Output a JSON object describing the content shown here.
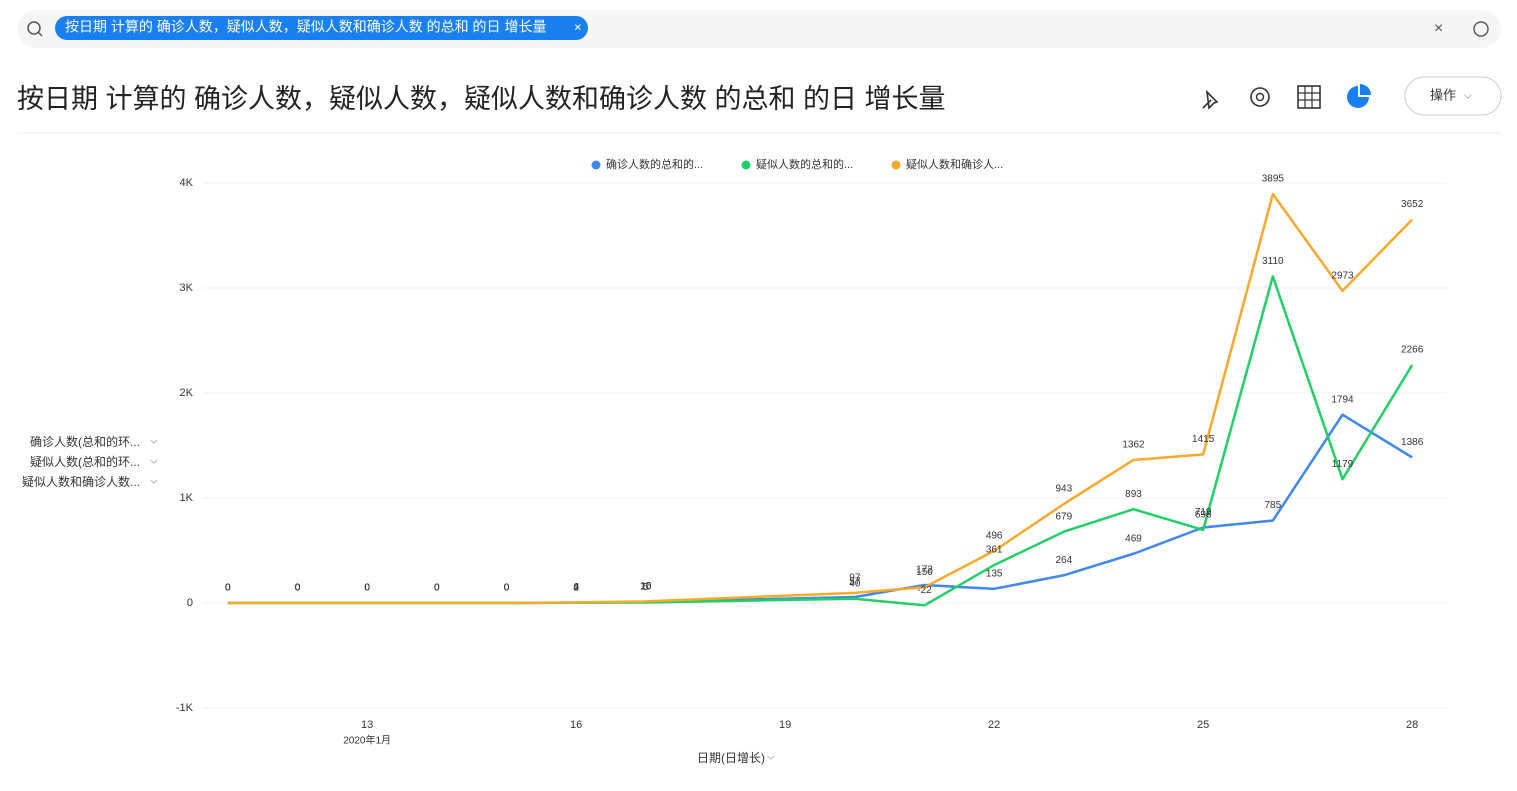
{
  "search": {
    "chip": "按日期 计算的 确诊人数，疑似人数，疑似人数和确诊人数  的总和  的日 增长量"
  },
  "header": {
    "title": "按日期 计算的 确诊人数，疑似人数，疑似人数和确诊人数 的总和 的日 增长量",
    "button": "操作"
  },
  "y_fields": [
    "确诊人数(总和的环...",
    "疑似人数(总和的环...",
    "疑似人数和确诊人数..."
  ],
  "chart_data": {
    "type": "line",
    "legend": "top",
    "grid": true,
    "x": [
      11,
      12,
      13,
      14,
      15,
      16,
      17,
      20,
      21,
      22,
      23,
      24,
      25,
      26,
      27,
      28
    ],
    "xlim": [
      10.5,
      28.5
    ],
    "xticks": [
      13,
      16,
      19,
      22,
      25,
      28
    ],
    "x_sublabel": "2020年1月",
    "xlabel": "日期(日增长)",
    "ylim": [
      -1000,
      4000
    ],
    "yticks": [
      {
        "value": -1000,
        "label": "-1K"
      },
      0,
      {
        "value": 1000,
        "label": "1K"
      },
      {
        "value": 2000,
        "label": "2K"
      },
      {
        "value": 3000,
        "label": "3K"
      },
      {
        "value": 4000,
        "label": "4K"
      }
    ],
    "series": [
      {
        "name": "确诊人数的总和的...",
        "color": "#3f86ed",
        "values": [
          0,
          0,
          0,
          0,
          0,
          4,
          10,
          57,
          172,
          135,
          264,
          469,
          719,
          785,
          1794,
          1386
        ]
      },
      {
        "name": "疑似人数的总和的...",
        "color": "#22cf66",
        "values": [
          0,
          0,
          0,
          0,
          0,
          2,
          5,
          40,
          -22,
          361,
          679,
          893,
          696,
          3110,
          1179,
          2266
        ]
      },
      {
        "name": "疑似人数和确诊人...",
        "color": "#f6a92a",
        "values": [
          0,
          0,
          0,
          0,
          0,
          6,
          15,
          97,
          150,
          496,
          943,
          1362,
          1415,
          3895,
          2973,
          3652
        ]
      }
    ]
  }
}
